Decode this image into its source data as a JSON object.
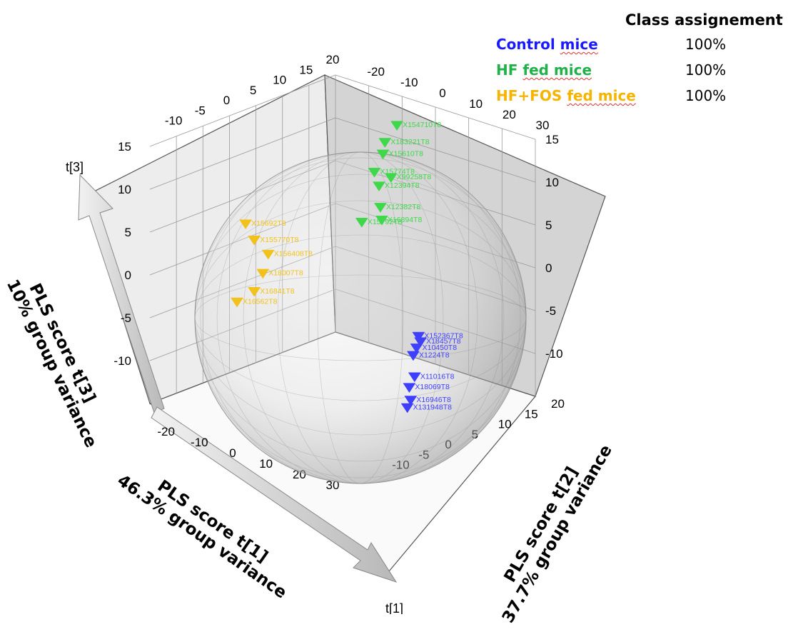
{
  "legend": {
    "title": "Class assignement",
    "classes": [
      {
        "name_a": "Control",
        "name_b": "mice",
        "value": "100%",
        "color": "#1a1aff"
      },
      {
        "name_a": "HF",
        "name_b": "fed mice",
        "value": "100%",
        "color": "#22b04a"
      },
      {
        "name_a": "HF+FOS",
        "name_b": "fed mice",
        "value": "100%",
        "color": "#f5b400"
      }
    ]
  },
  "axes": {
    "t1_short": "t[1]",
    "t3_short": "t[3]",
    "t1_title_l1": "PLS score t[1]",
    "t1_title_l2": "46.3% group variance",
    "t2_title_l1": "PLS score t[2]",
    "t2_title_l2": "37.7% group variance",
    "t3_title_l1": "PLS score t[3]",
    "t3_title_l2": "10% group variance"
  },
  "chart_data": {
    "type": "scatter",
    "projection": "3d",
    "x_axis": {
      "name": "t[1]",
      "range": [
        -30,
        30
      ],
      "ticks": [
        -20,
        -10,
        0,
        10,
        20,
        30
      ]
    },
    "y_axis": {
      "name": "t[2]",
      "range": [
        -15,
        20
      ],
      "ticks": [
        -10,
        -5,
        0,
        5,
        10,
        15,
        20
      ]
    },
    "z_axis": {
      "name": "t[3]",
      "range": [
        -15,
        15
      ],
      "ticks": [
        -10,
        -5,
        0,
        5,
        10,
        15
      ]
    },
    "series": [
      {
        "name": "Control mice",
        "color": "#3f3fff",
        "marker": "triangle-down",
        "points": [
          {
            "x": 22,
            "y": 3,
            "z": -5,
            "label": "X152367T8"
          },
          {
            "x": 21,
            "y": 4,
            "z": -6,
            "label": "X18457T8"
          },
          {
            "x": 23,
            "y": 2,
            "z": -6,
            "label": "X10450T8"
          },
          {
            "x": 22,
            "y": 2,
            "z": -7,
            "label": "X1224T8"
          },
          {
            "x": 24,
            "y": 1,
            "z": -9,
            "label": "X11016T8"
          },
          {
            "x": 24,
            "y": 0,
            "z": -10,
            "label": "X18069T8"
          },
          {
            "x": 26,
            "y": -1,
            "z": -11,
            "label": "X16946T8"
          },
          {
            "x": 25,
            "y": -1,
            "z": -12,
            "label": "X131948T8"
          }
        ]
      },
      {
        "name": "HF fed mice",
        "color": "#3ed84a",
        "marker": "triangle-down",
        "points": [
          {
            "x": -2,
            "y": 14,
            "z": 14,
            "label": "X154710T8"
          },
          {
            "x": -4,
            "y": 13,
            "z": 12,
            "label": "X183221T8"
          },
          {
            "x": -3,
            "y": 12,
            "z": 11,
            "label": "X15610T8"
          },
          {
            "x": 1,
            "y": 11,
            "z": 9,
            "label": "X99258T8"
          },
          {
            "x": -4,
            "y": 11,
            "z": 9,
            "label": "X15774T8"
          },
          {
            "x": -1,
            "y": 10,
            "z": 8,
            "label": "X12394T8"
          },
          {
            "x": 1,
            "y": 9,
            "z": 6,
            "label": "X12382T8"
          },
          {
            "x": 3,
            "y": 8,
            "z": 5,
            "label": "X16894T8"
          },
          {
            "x": -3,
            "y": 8,
            "z": 4,
            "label": "X15792T8"
          }
        ]
      },
      {
        "name": "HF+FOS fed mice",
        "color": "#f2c21a",
        "marker": "triangle-down",
        "points": [
          {
            "x": -14,
            "y": -7,
            "z": 6,
            "label": "X15692T8"
          },
          {
            "x": -13,
            "y": -6,
            "z": 4,
            "label": "X155770T8"
          },
          {
            "x": -12,
            "y": -4,
            "z": 2,
            "label": "X156408T8"
          },
          {
            "x": -12,
            "y": -5,
            "z": 0,
            "label": "X18007T8"
          },
          {
            "x": -13,
            "y": -6,
            "z": -2,
            "label": "X16841T8"
          },
          {
            "x": -15,
            "y": -8,
            "z": -3,
            "label": "X16562T8"
          }
        ]
      }
    ]
  }
}
